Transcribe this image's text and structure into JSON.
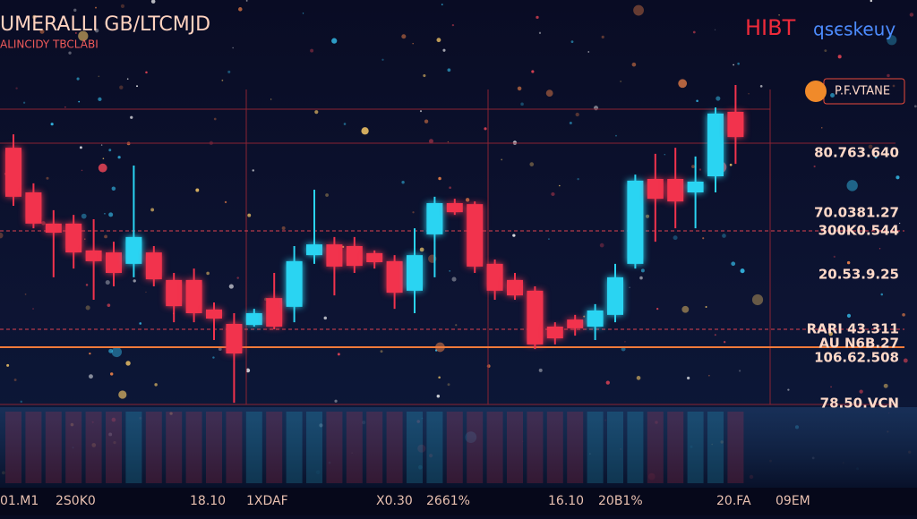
{
  "chart_data": {
    "type": "candlestick",
    "title": "UMERALLI GB/LTCMJD",
    "subtitle": "ALINCIDY TBCLABI",
    "brand": "HIBT",
    "brand_suffix": "qsєskeuy",
    "badge": "P.F.VTANE",
    "annotations": [
      "80.763.640",
      "70.0381.27",
      "300K0.544",
      "20.53.9.25",
      "RARI 43.311",
      "AU N6B.27",
      "106.62.508",
      "78.50.VCN"
    ],
    "footer": [
      "01.M1",
      "2S0K0",
      "18.10",
      "1XDAF",
      "X0.30",
      "2661%",
      "16.10",
      "20B1%",
      "20.FA",
      "09EM"
    ],
    "up_color": "#2ad4f2",
    "down_color": "#f2334d",
    "ylim": [
      0,
      100
    ],
    "open": [
      81.3,
      68,
      58.7,
      58.7,
      50.7,
      50.1,
      46.7,
      50.1,
      41.9,
      41.9,
      33.1,
      28.8,
      28.5,
      36.5,
      33.9,
      49.3,
      52.5,
      52,
      49.9,
      47.5,
      38.7,
      55.5,
      64.8,
      64.5,
      46.7,
      41.9,
      38.7,
      28,
      30.1,
      28,
      31.5,
      46.7,
      72,
      72,
      68,
      72.8,
      92
    ],
    "high": [
      85.3,
      70.7,
      62.7,
      61.3,
      60,
      53.3,
      76,
      52,
      44,
      45.3,
      35.2,
      32,
      33.3,
      44,
      52,
      68.8,
      54.7,
      54.7,
      50.7,
      49.3,
      57.3,
      66.7,
      66.1,
      65.3,
      48,
      44,
      40,
      29.3,
      31.5,
      34.7,
      46.7,
      73.3,
      79.5,
      81.3,
      78.7,
      93.3,
      100
    ],
    "low": [
      64,
      57.3,
      42.7,
      45.3,
      36,
      40,
      42.7,
      40,
      29.3,
      29.3,
      24,
      5.3,
      28,
      27.2,
      29.3,
      46.7,
      37.3,
      44,
      45.3,
      33.3,
      32,
      42.7,
      61.3,
      44,
      36,
      36,
      21.3,
      22.7,
      25.3,
      24,
      29.3,
      45.3,
      53.3,
      57.3,
      57.3,
      68,
      76.5
    ],
    "close": [
      66.7,
      58.7,
      56,
      50.1,
      47.5,
      44,
      54.7,
      42.1,
      34.1,
      32,
      30.4,
      20,
      32,
      28,
      47.5,
      52.5,
      45.9,
      46.1,
      47.2,
      38.1,
      49.3,
      64.8,
      62.1,
      45.9,
      38.7,
      37.3,
      22.7,
      24.5,
      27.5,
      32.8,
      42.7,
      71.5,
      66.1,
      65.3,
      71.2,
      91.5,
      84.5
    ]
  }
}
